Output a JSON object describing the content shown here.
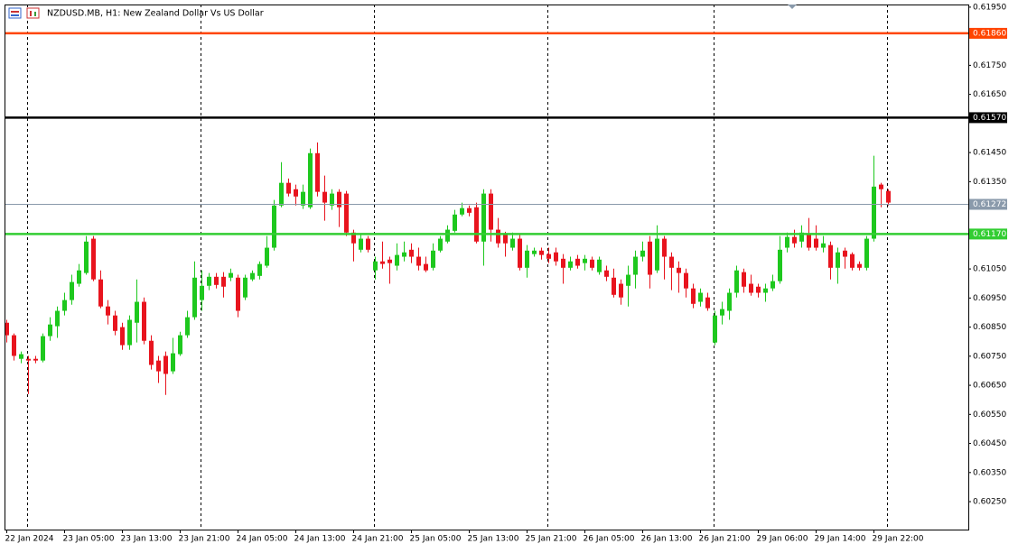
{
  "chart_data": {
    "type": "candlestick",
    "title": "NZDUSD.MB, H1:  New Zealand Dollar Vs US Dollar",
    "categories": [
      "22 Jan 2024",
      null,
      null,
      null,
      null,
      null,
      null,
      null,
      "23 Jan 05:00",
      null,
      null,
      null,
      null,
      null,
      null,
      null,
      "23 Jan 13:00",
      null,
      null,
      null,
      null,
      null,
      null,
      null,
      "23 Jan 21:00",
      null,
      null,
      null,
      null,
      null,
      null,
      null,
      "24 Jan 05:00",
      null,
      null,
      null,
      null,
      null,
      null,
      null,
      "24 Jan 13:00",
      null,
      null,
      null,
      null,
      null,
      null,
      null,
      "24 Jan 21:00",
      null,
      null,
      null,
      null,
      null,
      null,
      null,
      "25 Jan 05:00",
      null,
      null,
      null,
      null,
      null,
      null,
      null,
      "25 Jan 13:00",
      null,
      null,
      null,
      null,
      null,
      null,
      null,
      "25 Jan 21:00",
      null,
      null,
      null,
      null,
      null,
      null,
      null,
      "26 Jan 05:00",
      null,
      null,
      null,
      null,
      null,
      null,
      null,
      "26 Jan 13:00",
      null,
      null,
      null,
      null,
      null,
      null,
      null,
      "26 Jan 21:00",
      null,
      null,
      null,
      null,
      null,
      null,
      null,
      "29 Jan 06:00",
      null,
      null,
      null,
      null,
      null,
      null,
      null,
      "29 Jan 14:00",
      null,
      null,
      null,
      null,
      null,
      null,
      null,
      "29 Jan 22:00",
      null,
      null
    ],
    "open": [
      0.60865,
      0.60822,
      0.60741,
      0.60741,
      0.60741,
      0.60735,
      0.60819,
      0.60853,
      0.60906,
      0.60943,
      0.60999,
      0.61036,
      0.61154,
      0.61014,
      0.60921,
      0.6089,
      0.6085,
      0.60788,
      0.60865,
      0.60937,
      0.60803,
      0.60735,
      0.60751,
      0.60698,
      0.60757,
      0.60822,
      0.60884,
      0.60943,
      0.60992,
      0.61023,
      0.61023,
      0.6102,
      0.6102,
      0.60952,
      0.61014,
      0.61026,
      0.61061,
      0.61123,
      0.61268,
      0.61346,
      0.61324,
      0.61268,
      0.61262,
      0.61448,
      0.61315,
      0.61268,
      0.61315,
      0.61309,
      0.61175,
      0.61116,
      0.61154,
      0.61045,
      0.61076,
      0.61082,
      0.61061,
      0.61092,
      0.61116,
      0.61092,
      0.61067,
      0.61054,
      0.61113,
      0.61144,
      0.61181,
      0.61237,
      0.61259,
      0.61262,
      0.61144,
      0.61309,
      0.61185,
      0.61169,
      0.61123,
      0.61154,
      0.61054,
      0.61101,
      0.61113,
      0.61101,
      0.61107,
      0.61085,
      0.61054,
      0.61085,
      0.6107,
      0.61082,
      0.61039,
      0.61045,
      0.6102,
      0.60999,
      0.60992,
      0.6103,
      0.61092,
      0.61144,
      0.61045,
      0.61154,
      0.61092,
      0.61054,
      0.61036,
      0.60983,
      0.60937,
      0.60952,
      0.60797,
      0.6089,
      0.60906,
      0.60968,
      0.61039,
      0.60999,
      0.60989,
      0.60968,
      0.60983,
      0.61008,
      0.61123,
      0.6116,
      0.61144,
      0.61169,
      0.61154,
      0.61123,
      0.61132,
      0.61054,
      0.61113,
      0.61101,
      0.61067,
      0.61054,
      0.61154,
      0.6134,
      0.61318
    ],
    "high": [
      0.60875,
      0.60828,
      0.60766,
      0.60751,
      0.60751,
      0.60828,
      0.60884,
      0.60921,
      0.60968,
      0.6103,
      0.61067,
      0.61163,
      0.61163,
      0.61045,
      0.60943,
      0.60906,
      0.60865,
      0.6089,
      0.61014,
      0.60952,
      0.60822,
      0.60751,
      0.60766,
      0.60813,
      0.60834,
      0.60906,
      0.61076,
      0.61045,
      0.61036,
      0.61036,
      0.61039,
      0.61051,
      0.6103,
      0.6103,
      0.61045,
      0.61076,
      0.61163,
      0.61287,
      0.61417,
      0.61361,
      0.6134,
      0.6134,
      0.61464,
      0.61485,
      0.61371,
      0.61324,
      0.61324,
      0.61318,
      0.61185,
      0.61169,
      0.61163,
      0.61092,
      0.61144,
      0.61092,
      0.61138,
      0.61144,
      0.61138,
      0.61123,
      0.61092,
      0.61138,
      0.61163,
      0.612,
      0.61253,
      0.61278,
      0.61268,
      0.61278,
      0.61324,
      0.61324,
      0.61225,
      0.61178,
      0.61175,
      0.61169,
      0.61132,
      0.61123,
      0.61123,
      0.61123,
      0.61123,
      0.61101,
      0.61092,
      0.61098,
      0.61098,
      0.61092,
      0.61092,
      0.61061,
      0.61051,
      0.61014,
      0.61061,
      0.61113,
      0.61144,
      0.61163,
      0.612,
      0.61163,
      0.61107,
      0.61076,
      0.61051,
      0.60999,
      0.60983,
      0.60968,
      0.60906,
      0.60937,
      0.60983,
      0.61061,
      0.61051,
      0.6103,
      0.60999,
      0.60999,
      0.6103,
      0.61163,
      0.61175,
      0.61185,
      0.612,
      0.61225,
      0.612,
      0.61163,
      0.61144,
      0.61123,
      0.61123,
      0.61107,
      0.61076,
      0.61163,
      0.61439,
      0.61346,
      0.61324
    ],
    "low": [
      0.60797,
      0.60735,
      0.60726,
      0.6062,
      0.60726,
      0.60729,
      0.60803,
      0.60813,
      0.6089,
      0.60927,
      0.60989,
      0.6103,
      0.61008,
      0.60915,
      0.60859,
      0.60822,
      0.60772,
      0.60772,
      0.60797,
      0.60791,
      0.60704,
      0.60658,
      0.60617,
      0.60689,
      0.60751,
      0.60813,
      0.60875,
      0.60906,
      0.60977,
      0.60983,
      0.60952,
      0.61008,
      0.60884,
      0.60943,
      0.61008,
      0.61014,
      0.61054,
      0.61113,
      0.61262,
      0.61299,
      0.61268,
      0.61256,
      0.61256,
      0.61299,
      0.61216,
      0.61253,
      0.61194,
      0.61163,
      0.61076,
      0.61107,
      0.61107,
      0.61014,
      0.61051,
      0.60999,
      0.61045,
      0.61076,
      0.6107,
      0.61045,
      0.61039,
      0.61045,
      0.61107,
      0.61138,
      0.61175,
      0.61231,
      0.61231,
      0.61138,
      0.61061,
      0.61144,
      0.61123,
      0.61092,
      0.61113,
      0.61045,
      0.6102,
      0.61092,
      0.61082,
      0.6107,
      0.61061,
      0.60999,
      0.61045,
      0.61051,
      0.61045,
      0.61045,
      0.6103,
      0.61008,
      0.60952,
      0.60927,
      0.60921,
      0.60983,
      0.61076,
      0.60983,
      0.61036,
      0.61014,
      0.60977,
      0.60968,
      0.60952,
      0.60915,
      0.60921,
      0.60906,
      0.60788,
      0.60859,
      0.60875,
      0.60952,
      0.60968,
      0.60958,
      0.60952,
      0.60937,
      0.60974,
      0.60999,
      0.61107,
      0.61123,
      0.61123,
      0.61113,
      0.61113,
      0.61107,
      0.61014,
      0.60999,
      0.61051,
      0.61045,
      0.61045,
      0.61045,
      0.61144,
      0.61262,
      0.61268
    ],
    "close": [
      0.60822,
      0.60751,
      0.60757,
      0.60735,
      0.60735,
      0.60819,
      0.60859,
      0.60906,
      0.60943,
      0.61005,
      0.61045,
      0.61144,
      0.61014,
      0.60921,
      0.6089,
      0.60837,
      0.60788,
      0.60875,
      0.60937,
      0.60803,
      0.6072,
      0.60698,
      0.60689,
      0.6076,
      0.60822,
      0.60884,
      0.6102,
      0.60992,
      0.61023,
      0.60995,
      0.60989,
      0.61036,
      0.60906,
      0.6102,
      0.61036,
      0.61067,
      0.61123,
      0.61268,
      0.61346,
      0.61309,
      0.61299,
      0.61315,
      0.61448,
      0.61315,
      0.61278,
      0.61309,
      0.61262,
      0.61175,
      0.61138,
      0.61154,
      0.61116,
      0.61076,
      0.61067,
      0.6107,
      0.61098,
      0.61107,
      0.61092,
      0.61061,
      0.61045,
      0.61113,
      0.61154,
      0.61185,
      0.61237,
      0.61259,
      0.61243,
      0.61144,
      0.61309,
      0.61185,
      0.61138,
      0.61138,
      0.61154,
      0.61054,
      0.61113,
      0.61113,
      0.61098,
      0.61085,
      0.61076,
      0.61054,
      0.61076,
      0.61061,
      0.61085,
      0.61054,
      0.61082,
      0.61023,
      0.60961,
      0.60952,
      0.6103,
      0.61092,
      0.61113,
      0.6103,
      0.61154,
      0.61092,
      0.61054,
      0.61036,
      0.60983,
      0.6093,
      0.60968,
      0.60915,
      0.6089,
      0.60912,
      0.60968,
      0.61045,
      0.60989,
      0.60968,
      0.60968,
      0.60983,
      0.61008,
      0.61116,
      0.6116,
      0.61138,
      0.61175,
      0.61123,
      0.61123,
      0.61138,
      0.61054,
      0.61107,
      0.61092,
      0.61054,
      0.61054,
      0.61154,
      0.61333,
      0.61324,
      0.61278
    ],
    "up_color": "#1ec81e",
    "down_color": "#e8141e",
    "ylim": [
      0.60154,
      0.61959
    ],
    "yticks": [
      {
        "value": 0.6195,
        "label": "0.61950"
      },
      {
        "value": 0.6175,
        "label": "0.61750"
      },
      {
        "value": 0.6165,
        "label": "0.61650"
      },
      {
        "value": 0.6145,
        "label": "0.61450"
      },
      {
        "value": 0.6135,
        "label": "0.61350"
      },
      {
        "value": 0.6105,
        "label": "0.61050"
      },
      {
        "value": 0.6095,
        "label": "0.60950"
      },
      {
        "value": 0.6085,
        "label": "0.60850"
      },
      {
        "value": 0.6075,
        "label": "0.60750"
      },
      {
        "value": 0.6065,
        "label": "0.60650"
      },
      {
        "value": 0.6055,
        "label": "0.60550"
      },
      {
        "value": 0.6045,
        "label": "0.60450"
      },
      {
        "value": 0.6035,
        "label": "0.60350"
      },
      {
        "value": 0.6025,
        "label": "0.60250"
      }
    ],
    "levels": [
      {
        "value": 0.6186,
        "label": "0.61860",
        "color": "#ff4500"
      },
      {
        "value": 0.6157,
        "label": "0.61570",
        "color": "#000000"
      },
      {
        "value": 0.6117,
        "label": "0.61170",
        "color": "#32cd32"
      }
    ],
    "bid": {
      "value": 0.61272,
      "label": "0.61272",
      "color": "#8a9aab"
    }
  }
}
